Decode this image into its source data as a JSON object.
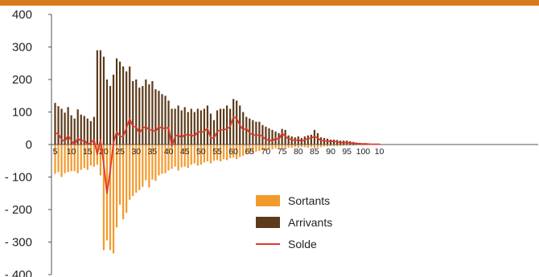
{
  "colors": {
    "top_bar": "#d97a1b",
    "sortants": "#f39a2d",
    "arrivants": "#5c3a1a",
    "solde": "#e0392b",
    "axis": "#555555",
    "text": "#222222"
  },
  "chart_data": {
    "type": "bar",
    "title": "",
    "xlabel": "",
    "ylabel": "",
    "ylim": [
      -400,
      400
    ],
    "yticks": [
      400,
      300,
      200,
      100,
      0,
      -100,
      -200,
      -300,
      -400
    ],
    "ytick_labels": [
      "400",
      "300",
      "200",
      "100",
      "0",
      "- 100",
      "- 200",
      "- 300",
      "- 400"
    ],
    "x": [
      5,
      6,
      7,
      8,
      9,
      10,
      11,
      12,
      13,
      14,
      15,
      16,
      17,
      18,
      19,
      20,
      21,
      22,
      23,
      24,
      25,
      26,
      27,
      28,
      29,
      30,
      31,
      32,
      33,
      34,
      35,
      36,
      37,
      38,
      39,
      40,
      41,
      42,
      43,
      44,
      45,
      46,
      47,
      48,
      49,
      50,
      51,
      52,
      53,
      54,
      55,
      56,
      57,
      58,
      59,
      60,
      61,
      62,
      63,
      64,
      65,
      66,
      67,
      68,
      69,
      70,
      71,
      72,
      73,
      74,
      75,
      76,
      77,
      78,
      79,
      80,
      81,
      82,
      83,
      84,
      85,
      86,
      87,
      88,
      89,
      90,
      91,
      92,
      93,
      94,
      95,
      96,
      97,
      98,
      99,
      100,
      101,
      102,
      103,
      104,
      105
    ],
    "xtick_labels": [
      "5",
      "10",
      "15",
      "20",
      "25",
      "30",
      "35",
      "40",
      "45",
      "50",
      "55",
      "60",
      "65",
      "70",
      "75",
      "80",
      "85",
      "90",
      "95",
      "100",
      "10"
    ],
    "legend": {
      "position": "bottom-right"
    },
    "series": [
      {
        "name": "Arrivants",
        "values": [
          128,
          118,
          110,
          98,
          115,
          90,
          80,
          108,
          92,
          88,
          80,
          72,
          85,
          290,
          290,
          270,
          200,
          180,
          215,
          265,
          255,
          240,
          225,
          240,
          195,
          200,
          175,
          180,
          200,
          185,
          195,
          170,
          165,
          155,
          150,
          135,
          110,
          110,
          120,
          105,
          115,
          100,
          110,
          100,
          110,
          105,
          110,
          120,
          95,
          75,
          105,
          110,
          110,
          120,
          110,
          140,
          135,
          120,
          100,
          85,
          80,
          75,
          70,
          70,
          60,
          55,
          50,
          45,
          40,
          35,
          48,
          45,
          28,
          25,
          22,
          25,
          20,
          25,
          28,
          30,
          45,
          35,
          22,
          20,
          18,
          15,
          15,
          14,
          12,
          12,
          12,
          10,
          8,
          6,
          5,
          4,
          4,
          3,
          2,
          2,
          2
        ]
      },
      {
        "name": "Sortants",
        "values": [
          -90,
          -85,
          -100,
          -88,
          -85,
          -82,
          -82,
          -88,
          -78,
          -72,
          -78,
          -65,
          -68,
          -62,
          -95,
          -325,
          -295,
          -325,
          -335,
          -255,
          -185,
          -230,
          -210,
          -170,
          -158,
          -148,
          -140,
          -130,
          -110,
          -132,
          -108,
          -112,
          -95,
          -90,
          -88,
          -80,
          -75,
          -68,
          -80,
          -70,
          -68,
          -72,
          -62,
          -58,
          -65,
          -62,
          -55,
          -52,
          -58,
          -50,
          -48,
          -52,
          -45,
          -48,
          -42,
          -40,
          -45,
          -38,
          -35,
          -30,
          -28,
          -25,
          -22,
          -20,
          -18,
          -20,
          -15,
          -15,
          -12,
          -12,
          -15,
          -12,
          -10,
          -10,
          -8,
          -10,
          -8,
          -8,
          -10,
          -8,
          -12,
          -10,
          -8,
          -6,
          -6,
          -5,
          -5,
          -5,
          -4,
          -4,
          -3,
          -3,
          -3,
          -2,
          -2,
          -2,
          -2,
          -1,
          -1,
          -1,
          -1
        ]
      },
      {
        "name": "Solde",
        "values": [
          35,
          33,
          15,
          10,
          28,
          12,
          0,
          20,
          10,
          14,
          0,
          5,
          15,
          -30,
          15,
          -60,
          -150,
          -80,
          5,
          40,
          25,
          25,
          50,
          80,
          55,
          55,
          35,
          50,
          55,
          45,
          45,
          40,
          55,
          50,
          50,
          52,
          -5,
          25,
          30,
          20,
          32,
          28,
          30,
          25,
          40,
          38,
          40,
          50,
          20,
          20,
          40,
          45,
          45,
          48,
          55,
          85,
          80,
          60,
          45,
          50,
          35,
          30,
          28,
          30,
          25,
          15,
          15,
          10,
          20,
          15,
          35,
          25,
          18,
          15,
          12,
          15,
          10,
          15,
          18,
          20,
          25,
          20,
          12,
          12,
          10,
          10,
          10,
          8,
          6,
          6,
          6,
          5,
          4,
          3,
          2,
          2,
          2,
          1,
          1,
          1,
          1
        ]
      }
    ]
  }
}
